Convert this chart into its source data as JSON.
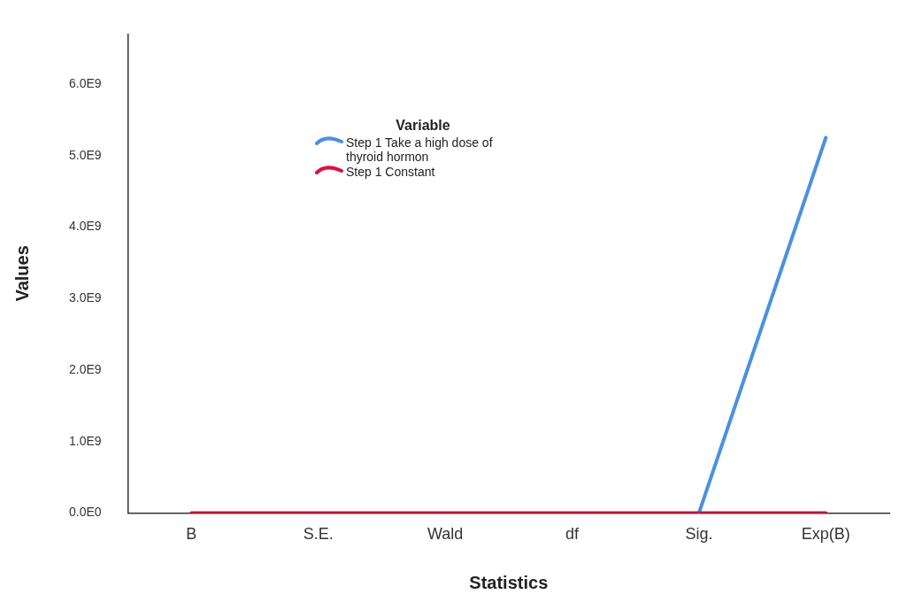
{
  "chart_data": {
    "type": "line",
    "xlabel": "Statistics",
    "ylabel": "Values",
    "legend_title": "Variable",
    "legend": "top left",
    "grid": false,
    "marker": "none",
    "line_style": "solid",
    "categories": [
      "B",
      "S.E.",
      "Wald",
      "df",
      "Sig.",
      "Exp(B)"
    ],
    "ylim": [
      0,
      6700000000
    ],
    "yticks": [
      {
        "value": 0,
        "label": "0.0E0"
      },
      {
        "value": 1000000000,
        "label": "1.0E9"
      },
      {
        "value": 2000000000,
        "label": "2.0E9"
      },
      {
        "value": 3000000000,
        "label": "3.0E9"
      },
      {
        "value": 4000000000,
        "label": "4.0E9"
      },
      {
        "value": 5000000000,
        "label": "5.0E9"
      },
      {
        "value": 6000000000,
        "label": "6.0E9"
      }
    ],
    "series": [
      {
        "name": "Step 1 Take a high dose of thyroid hormon",
        "color": "#4a90e2",
        "values": [
          null,
          null,
          null,
          null,
          0,
          5250000000
        ]
      },
      {
        "name": "Step 1 Constant",
        "color": "#e0103f",
        "values": [
          0,
          0,
          0,
          0,
          0,
          0
        ]
      }
    ]
  }
}
